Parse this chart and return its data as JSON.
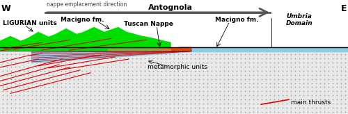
{
  "title": "Antognola",
  "west_label": "W",
  "east_label": "E",
  "arrow_label": "nappe emplacement direction",
  "labels": {
    "ligurian": "LIGURIAN units",
    "macigno_left": "Macigno fm.",
    "tuscan": "Tuscan Nappe",
    "macigno_right": "Macigno fm.",
    "umbria": "Umbria\nDomain",
    "metamorphic": "metamorphic units",
    "main_thrusts": "main thrusts"
  },
  "colors": {
    "background": "#ffffff",
    "stipple_bg": "#e0e0e0",
    "stipple_dot": "#999999",
    "green": "#00dd00",
    "light_blue": "#87ceeb",
    "orange_red": "#ee4400",
    "tan": "#cc9955",
    "red_line": "#dd0000",
    "dark_gray_arrow": "#555555",
    "black": "#000000"
  },
  "figsize": [
    5.0,
    1.64
  ],
  "dpi": 100
}
